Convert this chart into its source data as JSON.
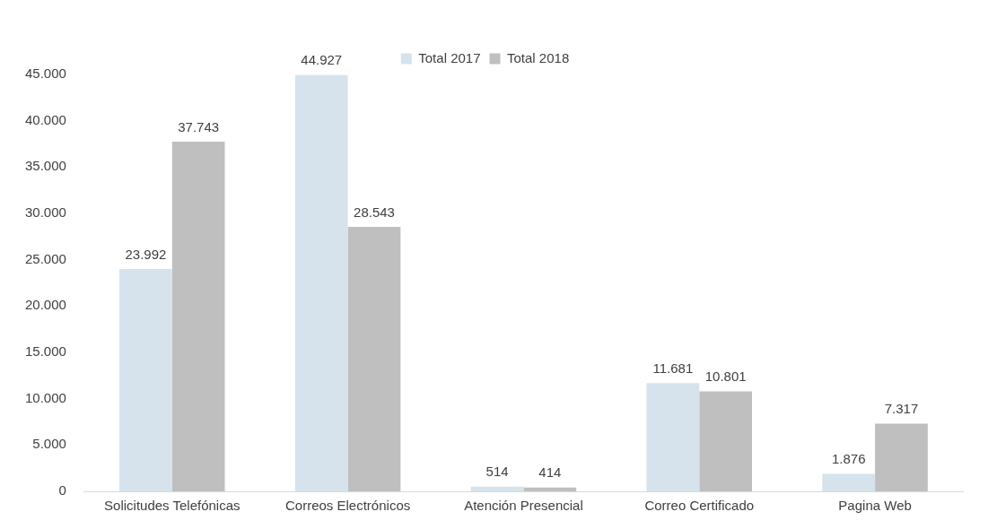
{
  "chart_data": {
    "type": "bar",
    "categories": [
      "Solicitudes Telefónicas",
      "Correos Electrónicos",
      "Atención Presencial",
      "Correo Certificado",
      "Pagina Web"
    ],
    "series": [
      {
        "name": "Total 2017",
        "color": "#d6e3ec",
        "values": [
          23992,
          44927,
          514,
          11681,
          1876
        ],
        "value_labels": [
          "23.992",
          "44.927",
          "514",
          "11.681",
          "1.876"
        ]
      },
      {
        "name": "Total 2018",
        "color": "#bfbfbf",
        "values": [
          37743,
          28543,
          414,
          10801,
          7317
        ],
        "value_labels": [
          "37.743",
          "28.543",
          "414",
          "10.801",
          "7.317"
        ]
      }
    ],
    "ylim": [
      0,
      45000
    ],
    "yticks": [
      {
        "value": 0,
        "label": "0"
      },
      {
        "value": 5000,
        "label": "5.000"
      },
      {
        "value": 10000,
        "label": "10.000"
      },
      {
        "value": 15000,
        "label": "15.000"
      },
      {
        "value": 20000,
        "label": "20.000"
      },
      {
        "value": 25000,
        "label": "25.000"
      },
      {
        "value": 30000,
        "label": "30.000"
      },
      {
        "value": 35000,
        "label": "35.000"
      },
      {
        "value": 40000,
        "label": "40.000"
      },
      {
        "value": 45000,
        "label": "45.000"
      }
    ],
    "grid": false,
    "legend": "top"
  }
}
